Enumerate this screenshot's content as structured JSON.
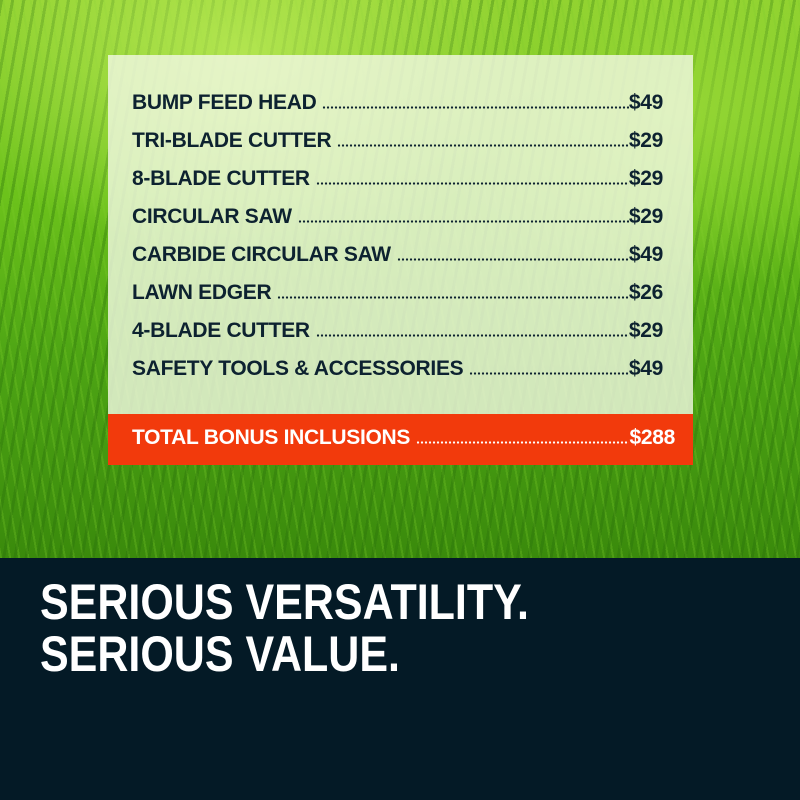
{
  "items": [
    {
      "label": "BUMP FEED HEAD",
      "price": "$49"
    },
    {
      "label": "TRI-BLADE CUTTER",
      "price": "$29"
    },
    {
      "label": "8-BLADE CUTTER",
      "price": "$29"
    },
    {
      "label": "CIRCULAR SAW",
      "price": "$29"
    },
    {
      "label": "CARBIDE CIRCULAR SAW",
      "price": "$49"
    },
    {
      "label": "LAWN EDGER",
      "price": "$26"
    },
    {
      "label": "4-BLADE CUTTER",
      "price": "$29"
    },
    {
      "label": "SAFETY TOOLS & ACCESSORIES",
      "price": "$49"
    }
  ],
  "total": {
    "label": "TOTAL BONUS INCLUSIONS",
    "price": "$288"
  },
  "headline": {
    "line1": "SERIOUS VERSATILITY.",
    "line2": "SERIOUS VALUE."
  },
  "colors": {
    "accent": "#f23a0c",
    "dark": "#041a26",
    "text": "#0d2230"
  }
}
